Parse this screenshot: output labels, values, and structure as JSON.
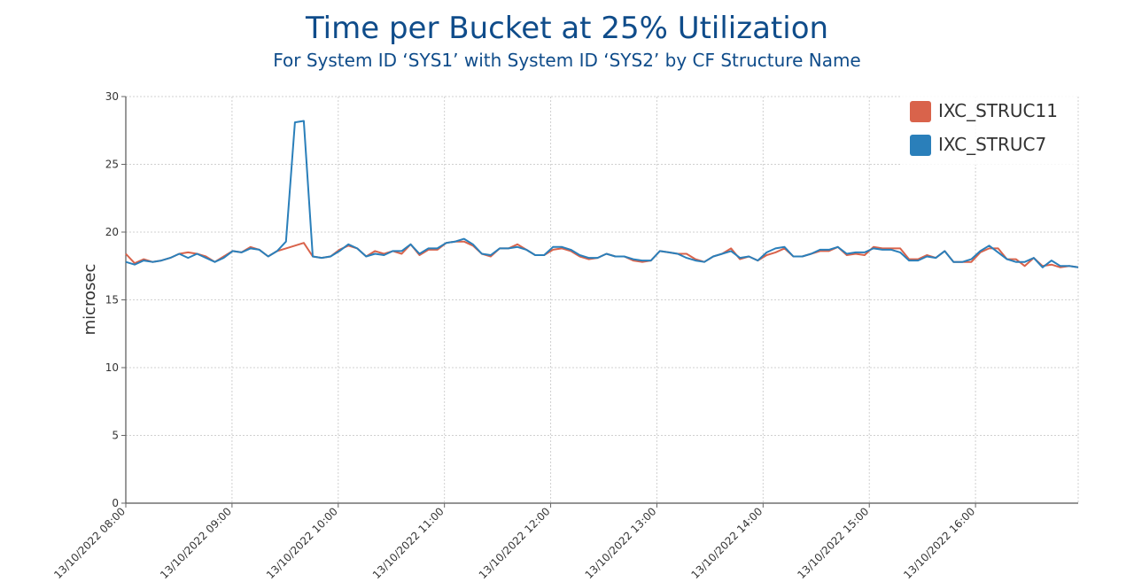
{
  "chart_data": {
    "type": "line",
    "title": "Time per Bucket at 25% Utilization",
    "subtitle": "For System ID ‘SYS1’ with System ID ‘SYS2’ by CF Structure Name",
    "xlabel": "",
    "ylabel": "microsec",
    "ylim": [
      0,
      30
    ],
    "yticks": [
      0,
      5,
      10,
      15,
      20,
      25,
      30
    ],
    "xlim": [
      0,
      538
    ],
    "x_tick_positions": [
      0,
      60,
      120,
      180,
      240,
      300,
      360,
      420,
      480
    ],
    "x_tick_labels": [
      "13/10/2022 08:00",
      "13/10/2022 09:00",
      "13/10/2022 10:00",
      "13/10/2022 11:00",
      "13/10/2022 12:00",
      "13/10/2022 13:00",
      "13/10/2022 14:00",
      "13/10/2022 15:00",
      "13/10/2022 16:00"
    ],
    "grid": true,
    "legend_position": "top-right",
    "series": [
      {
        "name": "IXC_STRUC11",
        "color": "#d9634b",
        "values": [
          18.4,
          17.7,
          18.0,
          17.8,
          17.9,
          18.1,
          18.4,
          18.5,
          18.4,
          18.2,
          17.8,
          18.2,
          18.6,
          18.5,
          18.9,
          18.7,
          18.2,
          18.6,
          18.8,
          19.0,
          19.2,
          18.2,
          18.1,
          18.2,
          18.7,
          19.0,
          18.8,
          18.2,
          18.6,
          18.4,
          18.6,
          18.4,
          19.1,
          18.3,
          18.7,
          18.7,
          19.2,
          19.3,
          19.3,
          19.0,
          18.4,
          18.2,
          18.8,
          18.8,
          19.1,
          18.7,
          18.3,
          18.3,
          18.7,
          18.8,
          18.6,
          18.2,
          18.0,
          18.1,
          18.4,
          18.2,
          18.2,
          17.9,
          17.8,
          17.9,
          18.6,
          18.5,
          18.4,
          18.4,
          18.0,
          17.8,
          18.2,
          18.4,
          18.8,
          18.0,
          18.2,
          17.9,
          18.3,
          18.5,
          18.8,
          18.2,
          18.2,
          18.4,
          18.6,
          18.6,
          18.9,
          18.3,
          18.4,
          18.3,
          18.9,
          18.8,
          18.8,
          18.8,
          18.0,
          18.0,
          18.3,
          18.1,
          18.6,
          17.8,
          17.8,
          17.8,
          18.5,
          18.8,
          18.8,
          18.0,
          18.0,
          17.5,
          18.1,
          17.5,
          17.6,
          17.4,
          17.5,
          17.4
        ]
      },
      {
        "name": "IXC_STRUC7",
        "color": "#2a7fba",
        "values": [
          17.8,
          17.6,
          17.9,
          17.8,
          17.9,
          18.1,
          18.4,
          18.1,
          18.4,
          18.1,
          17.8,
          18.1,
          18.6,
          18.5,
          18.8,
          18.7,
          18.2,
          18.6,
          19.3,
          28.1,
          28.2,
          18.2,
          18.1,
          18.2,
          18.6,
          19.1,
          18.8,
          18.2,
          18.4,
          18.3,
          18.6,
          18.6,
          19.1,
          18.4,
          18.8,
          18.8,
          19.2,
          19.3,
          19.5,
          19.1,
          18.4,
          18.3,
          18.8,
          18.8,
          18.9,
          18.7,
          18.3,
          18.3,
          18.9,
          18.9,
          18.7,
          18.3,
          18.1,
          18.1,
          18.4,
          18.2,
          18.2,
          18.0,
          17.9,
          17.9,
          18.6,
          18.5,
          18.4,
          18.1,
          17.9,
          17.8,
          18.2,
          18.4,
          18.6,
          18.1,
          18.2,
          17.9,
          18.5,
          18.8,
          18.9,
          18.2,
          18.2,
          18.4,
          18.7,
          18.7,
          18.9,
          18.4,
          18.5,
          18.5,
          18.8,
          18.7,
          18.7,
          18.5,
          17.9,
          17.9,
          18.2,
          18.1,
          18.6,
          17.8,
          17.8,
          18.0,
          18.6,
          19.0,
          18.5,
          18.0,
          17.8,
          17.8,
          18.1,
          17.4,
          17.9,
          17.5,
          17.5,
          17.4
        ]
      }
    ]
  }
}
